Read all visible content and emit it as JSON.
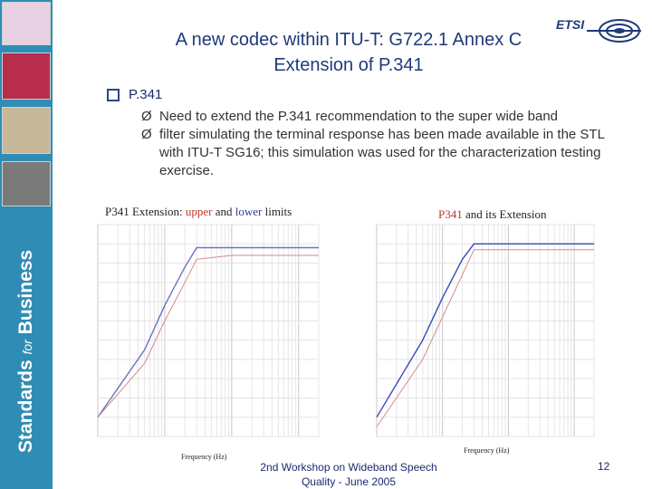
{
  "title": {
    "line1": "A new codec within ITU-T: G722.1 Annex C",
    "line2": "Extension of P.341"
  },
  "logo": {
    "text": "ETSI",
    "icon": "etsi-globe-logo"
  },
  "sidebar": {
    "text_main": "Standards",
    "text_for": "for",
    "text_end": "Business"
  },
  "bullets": {
    "main": "P.341",
    "sub1": "Need to extend the P.341 recommendation to the super wide band",
    "sub2": "filter simulating the terminal response has been made available in the STL with ITU-T SG16; this simulation was used for the characterization testing exercise.",
    "arrow": "Ø"
  },
  "chart_left_caption": {
    "prefix": "P341  Extension: ",
    "upper": "upper",
    "mid": " and ",
    "lower": "lower",
    "suffix": " limits"
  },
  "chart_right_caption": {
    "p341": "P341",
    "suffix": " and its Extension"
  },
  "chart_data": [
    {
      "type": "line",
      "xlabel": "Frequency (Hz)",
      "x_scale": "log",
      "x": [
        10,
        50,
        100,
        200,
        300,
        1000,
        3000,
        7000,
        14000,
        20000
      ],
      "series": [
        {
          "values": [
            -90,
            -55,
            -32,
            -12,
            -2,
            -2,
            -2,
            -2,
            -2,
            -2
          ],
          "color": "#6b72c8"
        },
        {
          "values": [
            -90,
            -62,
            -40,
            -20,
            -8,
            -6,
            -6,
            -6,
            -6,
            -6
          ],
          "color": "#d58a8a"
        }
      ],
      "ylim": [
        -100,
        10
      ]
    },
    {
      "type": "line",
      "xlabel": "Frequency (Hz)",
      "x_scale": "log",
      "x": [
        10,
        50,
        100,
        200,
        300,
        1000,
        3000,
        7000,
        14000,
        20000
      ],
      "series": [
        {
          "values": [
            -90,
            -50,
            -28,
            -8,
            0,
            0,
            0,
            0,
            0,
            0
          ],
          "color": "#3b47b8"
        },
        {
          "values": [
            -95,
            -60,
            -38,
            -16,
            -3,
            -3,
            -3,
            -3,
            -3,
            -3
          ],
          "color": "#d58a8a"
        }
      ],
      "ylim": [
        -100,
        10
      ]
    }
  ],
  "footer": {
    "line1": "2nd Workshop on Wideband Speech",
    "line2": "Quality - June 2005"
  },
  "page_number": "12"
}
